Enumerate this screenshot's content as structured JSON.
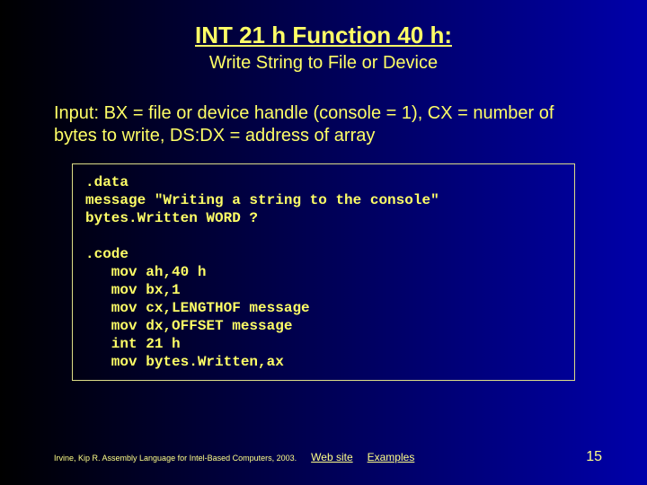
{
  "slide": {
    "title": "INT 21 h Function 40 h:",
    "subtitle": "Write String to File or Device",
    "input_desc": "Input: BX = file or device handle (console = 1), CX = number of bytes to write, DS:DX = address of array",
    "code": ".data\nmessage \"Writing a string to the console\"\nbytes.Written WORD ?\n\n.code\n   mov ah,40 h\n   mov bx,1\n   mov cx,LENGTHOF message\n   mov dx,OFFSET message\n   int 21 h\n   mov bytes.Written,ax",
    "footer_citation": "Irvine, Kip R. Assembly Language for Intel-Based Computers, 2003.",
    "link_website": "Web site",
    "link_examples": "Examples",
    "page_number": "15"
  },
  "colors": {
    "text": "#ffff66",
    "border": "#dddd88",
    "bg_gradient_start": "#000000",
    "bg_gradient_end": "#0000aa"
  },
  "typography": {
    "title_fontsize": 26,
    "subtitle_fontsize": 20,
    "body_fontsize": 20,
    "code_fontsize": 16,
    "footer_fontsize": 9,
    "pagenum_fontsize": 16,
    "title_font": "Arial",
    "code_font": "Courier New"
  }
}
